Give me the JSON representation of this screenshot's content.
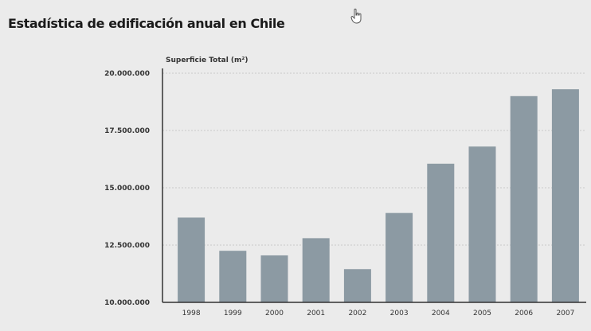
{
  "title": "Estadística de edificación anual en Chile",
  "cursor_icon": "hand-pointer-icon",
  "colors": {
    "bar": "#8c9aa3",
    "grid": "#c8c8c8",
    "axis": "#333333",
    "background": "#ebebeb"
  },
  "chart_data": {
    "type": "bar",
    "title": "Estadística de edificación anual en Chile",
    "ylabel": "Superficie Total (m²)",
    "xlabel": "",
    "categories": [
      "1998",
      "1999",
      "2000",
      "2001",
      "2002",
      "2003",
      "2004",
      "2005",
      "2006",
      "2007"
    ],
    "values": [
      13700000,
      12250000,
      12050000,
      12800000,
      11450000,
      13900000,
      16050000,
      16800000,
      19000000,
      19300000
    ],
    "ylim": [
      10000000,
      20000000
    ],
    "yticks": [
      10000000,
      12500000,
      15000000,
      17500000,
      20000000
    ],
    "ytick_labels": [
      "10.000.000",
      "12.500.000",
      "15.000.000",
      "17.500.000",
      "20.000.000"
    ],
    "grid": true,
    "legend": "none"
  }
}
